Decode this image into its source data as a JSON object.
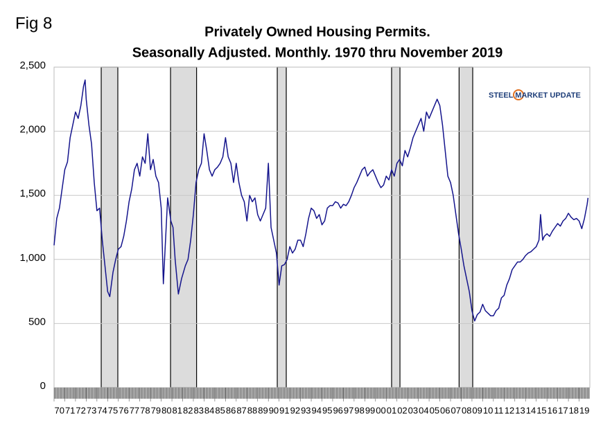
{
  "chart_data": {
    "type": "line",
    "figure_label": "Fig 8",
    "title": "Privately Owned Housing Permits.",
    "subtitle": "Seasonally Adjusted. Monthly. 1970 thru November 2019",
    "logo": "STEEL MARKET UPDATE",
    "color": "#14148c",
    "grid": true,
    "xlim": [
      1970,
      2020
    ],
    "ylim": [
      0,
      2500
    ],
    "yticks": [
      0,
      500,
      {
        "value": 1000,
        "label": "1,000"
      },
      {
        "value": 1500,
        "label": "1,500"
      },
      {
        "value": 2000,
        "label": "2,000"
      },
      {
        "value": 2500,
        "label": "2,500"
      }
    ],
    "xticks": [
      {
        "value": 1970,
        "label": "70"
      },
      {
        "value": 1971,
        "label": "71"
      },
      {
        "value": 1972,
        "label": "72"
      },
      {
        "value": 1973,
        "label": "73"
      },
      {
        "value": 1974,
        "label": "74"
      },
      {
        "value": 1975,
        "label": "75"
      },
      {
        "value": 1976,
        "label": "76"
      },
      {
        "value": 1977,
        "label": "77"
      },
      {
        "value": 1978,
        "label": "78"
      },
      {
        "value": 1979,
        "label": "79"
      },
      {
        "value": 1980,
        "label": "80"
      },
      {
        "value": 1981,
        "label": "81"
      },
      {
        "value": 1982,
        "label": "82"
      },
      {
        "value": 1983,
        "label": "83"
      },
      {
        "value": 1984,
        "label": "84"
      },
      {
        "value": 1985,
        "label": "85"
      },
      {
        "value": 1986,
        "label": "86"
      },
      {
        "value": 1987,
        "label": "87"
      },
      {
        "value": 1988,
        "label": "88"
      },
      {
        "value": 1989,
        "label": "89"
      },
      {
        "value": 1990,
        "label": "90"
      },
      {
        "value": 1991,
        "label": "91"
      },
      {
        "value": 1992,
        "label": "92"
      },
      {
        "value": 1993,
        "label": "93"
      },
      {
        "value": 1994,
        "label": "94"
      },
      {
        "value": 1995,
        "label": "95"
      },
      {
        "value": 1996,
        "label": "96"
      },
      {
        "value": 1997,
        "label": "97"
      },
      {
        "value": 1998,
        "label": "98"
      },
      {
        "value": 1999,
        "label": "99"
      },
      {
        "value": 2000,
        "label": "00"
      },
      {
        "value": 2001,
        "label": "01"
      },
      {
        "value": 2002,
        "label": "02"
      },
      {
        "value": 2003,
        "label": "03"
      },
      {
        "value": 2004,
        "label": "04"
      },
      {
        "value": 2005,
        "label": "05"
      },
      {
        "value": 2006,
        "label": "06"
      },
      {
        "value": 2007,
        "label": "07"
      },
      {
        "value": 2008,
        "label": "08"
      },
      {
        "value": 2009,
        "label": "09"
      },
      {
        "value": 2010,
        "label": "10"
      },
      {
        "value": 2011,
        "label": "11"
      },
      {
        "value": 2012,
        "label": "12"
      },
      {
        "value": 2013,
        "label": "13"
      },
      {
        "value": 2014,
        "label": "14"
      },
      {
        "value": 2015,
        "label": "15"
      },
      {
        "value": 2016,
        "label": "16"
      },
      {
        "value": 2017,
        "label": "17"
      },
      {
        "value": 2018,
        "label": "18"
      },
      {
        "value": 2019,
        "label": "19"
      }
    ],
    "recessions": [
      [
        1974.4,
        1975.95
      ],
      [
        1980.87,
        1983.3
      ],
      [
        1990.83,
        1991.67
      ],
      [
        2001.5,
        2002.28
      ],
      [
        2007.8,
        2009.07
      ]
    ],
    "x": [
      1970.0,
      1970.25,
      1970.5,
      1970.75,
      1971.0,
      1971.25,
      1971.5,
      1971.75,
      1972.0,
      1972.25,
      1972.5,
      1972.75,
      1972.9,
      1973.0,
      1973.25,
      1973.5,
      1973.75,
      1974.0,
      1974.25,
      1974.5,
      1974.75,
      1975.0,
      1975.2,
      1975.5,
      1975.75,
      1976.0,
      1976.25,
      1976.5,
      1976.75,
      1977.0,
      1977.25,
      1977.5,
      1977.75,
      1978.0,
      1978.25,
      1978.5,
      1978.75,
      1979.0,
      1979.25,
      1979.5,
      1979.75,
      1980.0,
      1980.2,
      1980.6,
      1980.9,
      1981.1,
      1981.3,
      1981.6,
      1981.9,
      1982.25,
      1982.5,
      1982.75,
      1983.0,
      1983.25,
      1983.5,
      1983.75,
      1984.0,
      1984.25,
      1984.5,
      1984.75,
      1985.0,
      1985.25,
      1985.5,
      1985.75,
      1986.0,
      1986.25,
      1986.5,
      1986.75,
      1987.0,
      1987.25,
      1987.5,
      1987.75,
      1988.0,
      1988.25,
      1988.5,
      1988.75,
      1989.0,
      1989.25,
      1989.5,
      1989.75,
      1990.0,
      1990.25,
      1990.5,
      1990.75,
      1991.0,
      1991.25,
      1991.5,
      1991.75,
      1992.0,
      1992.25,
      1992.5,
      1992.75,
      1993.0,
      1993.25,
      1993.5,
      1993.75,
      1994.0,
      1994.25,
      1994.5,
      1994.75,
      1995.0,
      1995.25,
      1995.5,
      1995.75,
      1996.0,
      1996.25,
      1996.5,
      1996.75,
      1997.0,
      1997.25,
      1997.5,
      1997.75,
      1998.0,
      1998.25,
      1998.5,
      1998.75,
      1999.0,
      1999.25,
      1999.5,
      1999.75,
      2000.0,
      2000.25,
      2000.5,
      2000.75,
      2001.0,
      2001.25,
      2001.5,
      2001.75,
      2002.0,
      2002.25,
      2002.5,
      2002.75,
      2003.0,
      2003.25,
      2003.5,
      2003.75,
      2004.0,
      2004.25,
      2004.5,
      2004.75,
      2005.0,
      2005.25,
      2005.5,
      2005.75,
      2006.0,
      2006.25,
      2006.5,
      2006.75,
      2007.0,
      2007.25,
      2007.5,
      2007.75,
      2008.0,
      2008.25,
      2008.5,
      2008.75,
      2009.0,
      2009.25,
      2009.5,
      2009.75,
      2010.0,
      2010.25,
      2010.5,
      2010.75,
      2011.0,
      2011.25,
      2011.5,
      2011.75,
      2012.0,
      2012.25,
      2012.5,
      2012.75,
      2013.0,
      2013.25,
      2013.5,
      2013.75,
      2014.0,
      2014.25,
      2014.5,
      2014.75,
      2015.0,
      2015.25,
      2015.4,
      2015.6,
      2015.75,
      2016.0,
      2016.25,
      2016.5,
      2016.75,
      2017.0,
      2017.25,
      2017.5,
      2017.75,
      2018.0,
      2018.25,
      2018.5,
      2018.75,
      2019.0,
      2019.25,
      2019.5,
      2019.75,
      2019.83
    ],
    "values": [
      1110,
      1320,
      1400,
      1550,
      1700,
      1760,
      1950,
      2050,
      2150,
      2100,
      2200,
      2350,
      2400,
      2250,
      2050,
      1900,
      1600,
      1380,
      1400,
      1150,
      950,
      750,
      710,
      900,
      1000,
      1080,
      1100,
      1180,
      1300,
      1450,
      1550,
      1700,
      1750,
      1650,
      1800,
      1750,
      1980,
      1700,
      1780,
      1650,
      1600,
      1400,
      810,
      1480,
      1300,
      1250,
      1000,
      730,
      850,
      950,
      1000,
      1150,
      1350,
      1600,
      1700,
      1750,
      1980,
      1850,
      1700,
      1650,
      1700,
      1720,
      1750,
      1800,
      1950,
      1800,
      1750,
      1600,
      1750,
      1600,
      1500,
      1450,
      1300,
      1500,
      1450,
      1480,
      1350,
      1300,
      1350,
      1400,
      1750,
      1250,
      1150,
      1050,
      800,
      950,
      960,
      1000,
      1100,
      1050,
      1080,
      1150,
      1150,
      1100,
      1200,
      1320,
      1400,
      1380,
      1320,
      1350,
      1270,
      1300,
      1400,
      1420,
      1420,
      1450,
      1440,
      1400,
      1430,
      1420,
      1450,
      1500,
      1560,
      1600,
      1650,
      1700,
      1720,
      1650,
      1680,
      1700,
      1650,
      1600,
      1560,
      1580,
      1650,
      1620,
      1700,
      1650,
      1750,
      1780,
      1730,
      1850,
      1800,
      1870,
      1950,
      2000,
      2050,
      2100,
      2000,
      2150,
      2100,
      2150,
      2200,
      2250,
      2200,
      2050,
      1850,
      1650,
      1600,
      1500,
      1350,
      1200,
      1080,
      950,
      850,
      750,
      600,
      520,
      570,
      590,
      650,
      600,
      580,
      560,
      560,
      600,
      620,
      700,
      720,
      800,
      850,
      920,
      950,
      980,
      980,
      1000,
      1030,
      1050,
      1060,
      1080,
      1100,
      1150,
      1350,
      1150,
      1180,
      1200,
      1180,
      1220,
      1250,
      1280,
      1260,
      1300,
      1320,
      1360,
      1330,
      1310,
      1320,
      1300,
      1240,
      1320,
      1430,
      1480
    ]
  }
}
